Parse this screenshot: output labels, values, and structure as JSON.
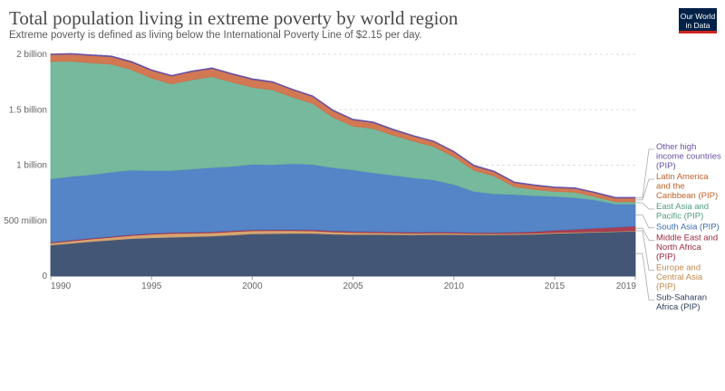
{
  "title": "Total population living in extreme poverty by world region",
  "subtitle": "Extreme poverty is defined as living below the International Poverty Line of $2.15 per day.",
  "logo": {
    "line1": "Our World",
    "line2": "in Data"
  },
  "chart_data": {
    "type": "area",
    "stacked": true,
    "x": [
      1990,
      1991,
      1992,
      1993,
      1994,
      1995,
      1996,
      1997,
      1998,
      1999,
      2000,
      2001,
      2002,
      2003,
      2004,
      2005,
      2006,
      2007,
      2008,
      2009,
      2010,
      2011,
      2012,
      2013,
      2014,
      2015,
      2016,
      2017,
      2018,
      2019
    ],
    "series": [
      {
        "name": "Sub-Saharan Africa (PIP)",
        "color": "#3a4d6e",
        "values": [
          280,
          295,
          312,
          325,
          338,
          345,
          350,
          355,
          360,
          370,
          380,
          383,
          385,
          385,
          378,
          375,
          375,
          374,
          372,
          375,
          375,
          372,
          372,
          375,
          378,
          385,
          390,
          395,
          400,
          405
        ]
      },
      {
        "name": "Europe and Central Asia (PIP)",
        "color": "#d4a06b",
        "values": [
          18,
          20,
          22,
          24,
          28,
          32,
          34,
          32,
          30,
          30,
          28,
          26,
          24,
          22,
          20,
          18,
          16,
          15,
          14,
          13,
          12,
          11,
          10,
          9,
          8,
          8,
          7,
          7,
          6,
          6
        ]
      },
      {
        "name": "Middle East and North Africa (PIP)",
        "color": "#a2354a",
        "values": [
          8,
          8,
          8,
          8,
          8,
          9,
          9,
          9,
          9,
          9,
          10,
          10,
          10,
          10,
          10,
          10,
          10,
          10,
          10,
          10,
          10,
          10,
          10,
          12,
          15,
          20,
          25,
          30,
          35,
          40
        ]
      },
      {
        "name": "South Asia (PIP)",
        "color": "#4c7dc4",
        "values": [
          570,
          575,
          572,
          580,
          583,
          565,
          560,
          570,
          580,
          580,
          590,
          585,
          595,
          590,
          570,
          555,
          530,
          510,
          490,
          470,
          430,
          370,
          350,
          340,
          325,
          305,
          285,
          255,
          210,
          200
        ]
      },
      {
        "name": "East Asia and Pacific (PIP)",
        "color": "#6fb598",
        "values": [
          1060,
          1040,
          1010,
          975,
          905,
          835,
          780,
          805,
          820,
          760,
          695,
          675,
          600,
          550,
          455,
          395,
          400,
          360,
          330,
          300,
          250,
          190,
          160,
          70,
          55,
          45,
          50,
          30,
          20,
          20
        ]
      },
      {
        "name": "Latin America and the Caribbean (PIP)",
        "color": "#d0714a",
        "values": [
          60,
          63,
          65,
          66,
          67,
          68,
          70,
          72,
          72,
          70,
          70,
          68,
          65,
          62,
          58,
          55,
          52,
          48,
          45,
          44,
          42,
          40,
          38,
          36,
          35,
          34,
          33,
          33,
          33,
          32
        ]
      },
      {
        "name": "Other high income countries (PIP)",
        "color": "#6a51a3",
        "values": [
          7,
          7,
          7,
          7,
          7,
          7,
          7,
          7,
          7,
          7,
          7,
          7,
          7,
          7,
          7,
          7,
          7,
          7,
          7,
          7,
          7,
          7,
          7,
          7,
          7,
          7,
          7,
          7,
          7,
          7
        ]
      }
    ],
    "ylim": [
      0,
      2000
    ],
    "y_ticks": [
      {
        "value": 0,
        "label": "0"
      },
      {
        "value": 500,
        "label": "500 million"
      },
      {
        "value": 1000,
        "label": "1 billion"
      },
      {
        "value": 1500,
        "label": "1.5 billion"
      },
      {
        "value": 2000,
        "label": "2 billion"
      }
    ],
    "x_ticks": [
      {
        "value": 1990,
        "label": "1990"
      },
      {
        "value": 1995,
        "label": "1995"
      },
      {
        "value": 2000,
        "label": "2000"
      },
      {
        "value": 2005,
        "label": "2005"
      },
      {
        "value": 2010,
        "label": "2010"
      },
      {
        "value": 2015,
        "label": "2015"
      },
      {
        "value": 2019,
        "label": "2019"
      }
    ],
    "legend_placement": "right",
    "legend": [
      {
        "series": 6,
        "lines": [
          "Other high",
          "income countries",
          "(PIP)"
        ],
        "color": "#6a51a3"
      },
      {
        "series": 5,
        "lines": [
          "Latin America",
          "and the",
          "Caribbean (PIP)"
        ],
        "color": "#c0612a"
      },
      {
        "series": 4,
        "lines": [
          "East Asia and",
          "Pacific (PIP)"
        ],
        "color": "#4f9d7e"
      },
      {
        "series": 3,
        "lines": [
          "South Asia (PIP)"
        ],
        "color": "#3b6db3"
      },
      {
        "series": 2,
        "lines": [
          "Middle East and",
          "North Africa",
          "(PIP)"
        ],
        "color": "#9c2a3f"
      },
      {
        "series": 1,
        "lines": [
          "Europe and",
          "Central Asia",
          "(PIP)"
        ],
        "color": "#c08a4e"
      },
      {
        "series": 0,
        "lines": [
          "Sub-Saharan",
          "Africa (PIP)"
        ],
        "color": "#2f3f5c"
      }
    ],
    "grid": true
  }
}
